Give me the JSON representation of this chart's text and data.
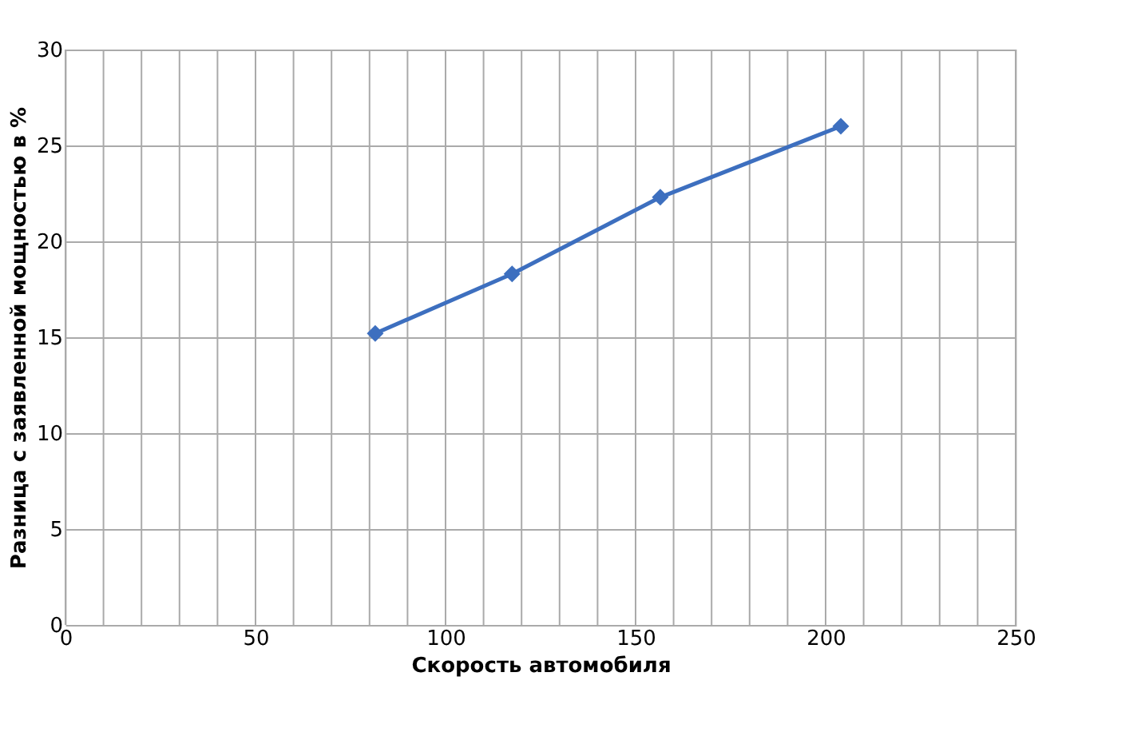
{
  "chart_data": {
    "type": "line",
    "xlabel": "Скорость автомобиля",
    "ylabel": "Разница с заявленной мощностью в %",
    "x": [
      81.5,
      117.5,
      156.5,
      204
    ],
    "series": [
      {
        "color": "#3d6fbf",
        "values": [
          15.2,
          18.3,
          22.3,
          26
        ]
      }
    ],
    "xlim": [
      0,
      250
    ],
    "xticks": [
      0,
      {
        "value": 10,
        "label": null
      },
      {
        "value": 20,
        "label": null
      },
      {
        "value": 30,
        "label": null
      },
      {
        "value": 40,
        "label": null
      },
      50,
      {
        "value": 60,
        "label": null
      },
      {
        "value": 70,
        "label": null
      },
      {
        "value": 80,
        "label": null
      },
      {
        "value": 90,
        "label": null
      },
      100,
      {
        "value": 110,
        "label": null
      },
      {
        "value": 120,
        "label": null
      },
      {
        "value": 130,
        "label": null
      },
      {
        "value": 140,
        "label": null
      },
      150,
      {
        "value": 160,
        "label": null
      },
      {
        "value": 170,
        "label": null
      },
      {
        "value": 180,
        "label": null
      },
      {
        "value": 190,
        "label": null
      },
      200,
      {
        "value": 210,
        "label": null
      },
      {
        "value": 220,
        "label": null
      },
      {
        "value": 230,
        "label": null
      },
      {
        "value": 240,
        "label": null
      },
      250
    ],
    "ylim": [
      0,
      30
    ],
    "yticks": [
      0,
      5,
      10,
      15,
      20,
      25,
      30
    ],
    "grid": true,
    "marker": "diamond",
    "line_style": "solid"
  }
}
